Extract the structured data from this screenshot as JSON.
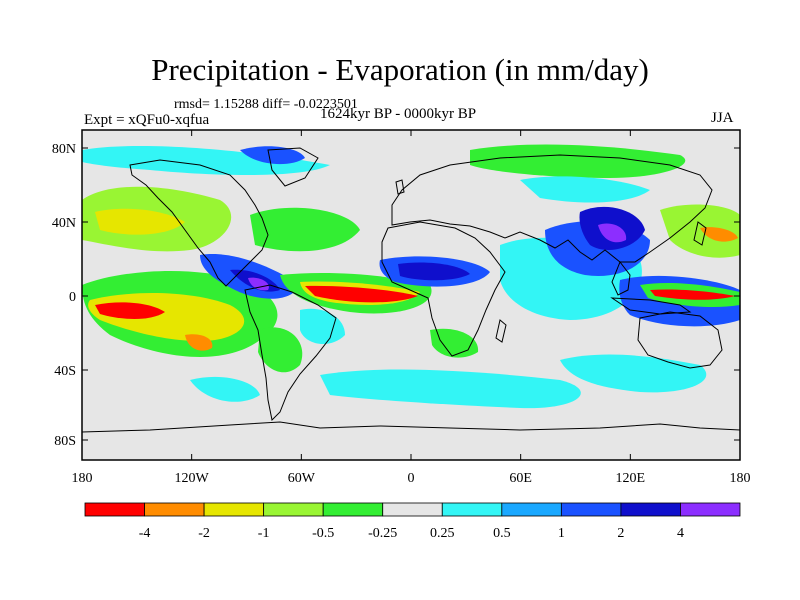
{
  "title": "Precipitation - Evaporation (in mm/day)",
  "stats": "rmsd= 1.15288 diff= -0.0223501",
  "period": "1624kyr BP - 0000kyr BP",
  "expt": "Expt = xQFu0-xqfua",
  "season": "JJA",
  "map": {
    "lon_ticks": [
      "180",
      "120W",
      "60W",
      "0",
      "60E",
      "120E",
      "180"
    ],
    "lat_ticks": [
      "80N",
      "40N",
      "0",
      "40S",
      "80S"
    ],
    "background": "#e6e6e6"
  },
  "colorbar": {
    "colors": [
      "#ff0000",
      "#ff8c00",
      "#e6e600",
      "#99f533",
      "#33ee33",
      "#e6e6e6",
      "#33f5f5",
      "#1aa8ff",
      "#1a52ff",
      "#0f0fcc",
      "#8c2eff"
    ],
    "labels": [
      "-4",
      "-2",
      "-1",
      "-0.5",
      "-0.25",
      "0.25",
      "0.5",
      "1",
      "2",
      "4"
    ]
  }
}
